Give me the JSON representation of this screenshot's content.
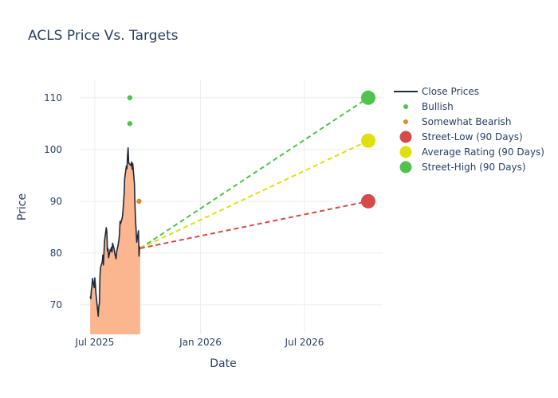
{
  "chart_data": {
    "type": "line",
    "title": "ACLS Price Vs. Targets",
    "xlabel": "Date",
    "ylabel": "Price",
    "xlim": [
      "2025-05-08",
      "2026-11-14"
    ],
    "ylim": [
      64.3,
      113.5
    ],
    "x_ticks": [
      {
        "date": "2025-07-01",
        "label": "Jul 2025"
      },
      {
        "date": "2026-01-01",
        "label": "Jan 2026"
      },
      {
        "date": "2026-07-01",
        "label": "Jul 2026"
      }
    ],
    "y_ticks": [
      70,
      80,
      90,
      100,
      110
    ],
    "grid": true,
    "legend_position": "top-right",
    "colors": {
      "close": "#1f2a3a",
      "fill": "#fbb58f",
      "bullish": "#4fc24f",
      "somewhat_bearish": "#d4902a",
      "street_low": "#d64a4a",
      "average": "#e0e010",
      "street_high": "#4fc24f"
    },
    "series": [
      {
        "name": "Close Prices",
        "kind": "line-area",
        "points": [
          [
            "2025-06-23",
            71.6
          ],
          [
            "2025-06-24",
            71.2
          ],
          [
            "2025-06-25",
            72.8
          ],
          [
            "2025-06-26",
            73.6
          ],
          [
            "2025-06-27",
            75.1
          ],
          [
            "2025-06-30",
            73.3
          ],
          [
            "2025-07-01",
            75.2
          ],
          [
            "2025-07-02",
            73.9
          ],
          [
            "2025-07-03",
            72.2
          ],
          [
            "2025-07-07",
            67.8
          ],
          [
            "2025-07-08",
            69.7
          ],
          [
            "2025-07-09",
            70.3
          ],
          [
            "2025-07-10",
            75.6
          ],
          [
            "2025-07-11",
            77.2
          ],
          [
            "2025-07-14",
            78.3
          ],
          [
            "2025-07-15",
            79.6
          ],
          [
            "2025-07-16",
            77.7
          ],
          [
            "2025-07-17",
            80.2
          ],
          [
            "2025-07-18",
            82.4
          ],
          [
            "2025-07-21",
            84.9
          ],
          [
            "2025-07-22",
            84.1
          ],
          [
            "2025-07-23",
            80.4
          ],
          [
            "2025-07-24",
            80.8
          ],
          [
            "2025-07-25",
            79.1
          ],
          [
            "2025-07-28",
            80.7
          ],
          [
            "2025-07-29",
            80.4
          ],
          [
            "2025-07-30",
            81.1
          ],
          [
            "2025-07-31",
            80.2
          ],
          [
            "2025-08-01",
            81.9
          ],
          [
            "2025-08-04",
            80.6
          ],
          [
            "2025-08-05",
            79.8
          ],
          [
            "2025-08-06",
            79.4
          ],
          [
            "2025-08-07",
            78.9
          ],
          [
            "2025-08-08",
            80.2
          ],
          [
            "2025-08-11",
            81.8
          ],
          [
            "2025-08-12",
            82.6
          ],
          [
            "2025-08-13",
            83.7
          ],
          [
            "2025-08-14",
            86.1
          ],
          [
            "2025-08-15",
            85.7
          ],
          [
            "2025-08-18",
            86.9
          ],
          [
            "2025-08-19",
            88.1
          ],
          [
            "2025-08-20",
            89.6
          ],
          [
            "2025-08-21",
            91.3
          ],
          [
            "2025-08-22",
            94.4
          ],
          [
            "2025-08-25",
            96.8
          ],
          [
            "2025-08-26",
            96.3
          ],
          [
            "2025-08-27",
            98.9
          ],
          [
            "2025-08-28",
            100.3
          ],
          [
            "2025-08-29",
            97.4
          ],
          [
            "2025-09-02",
            96.9
          ],
          [
            "2025-09-03",
            97.6
          ],
          [
            "2025-09-04",
            96.2
          ],
          [
            "2025-09-05",
            97.3
          ],
          [
            "2025-09-08",
            93.4
          ],
          [
            "2025-09-09",
            89.1
          ],
          [
            "2025-09-10",
            86.3
          ],
          [
            "2025-09-11",
            84.2
          ],
          [
            "2025-09-12",
            82.1
          ],
          [
            "2025-09-15",
            84.3
          ],
          [
            "2025-09-16",
            79.4
          ],
          [
            "2025-09-17",
            81.2
          ],
          [
            "2025-09-18",
            80.9
          ]
        ]
      },
      {
        "name": "Bullish",
        "kind": "markers",
        "points": [
          [
            "2025-08-31",
            110
          ],
          [
            "2025-08-31",
            105
          ]
        ]
      },
      {
        "name": "Somewhat Bearish",
        "kind": "markers",
        "points": [
          [
            "2025-09-16",
            90
          ]
        ]
      },
      {
        "name": "Street-Low (90 Days)",
        "kind": "target",
        "from": [
          "2025-09-18",
          80.9
        ],
        "to": [
          "2026-10-20",
          90
        ]
      },
      {
        "name": "Average Rating (90 Days)",
        "kind": "target",
        "from": [
          "2025-09-18",
          80.9
        ],
        "to": [
          "2026-10-20",
          101.7
        ]
      },
      {
        "name": "Street-High (90 Days)",
        "kind": "target",
        "from": [
          "2025-09-18",
          80.9
        ],
        "to": [
          "2026-10-20",
          110
        ]
      }
    ]
  }
}
